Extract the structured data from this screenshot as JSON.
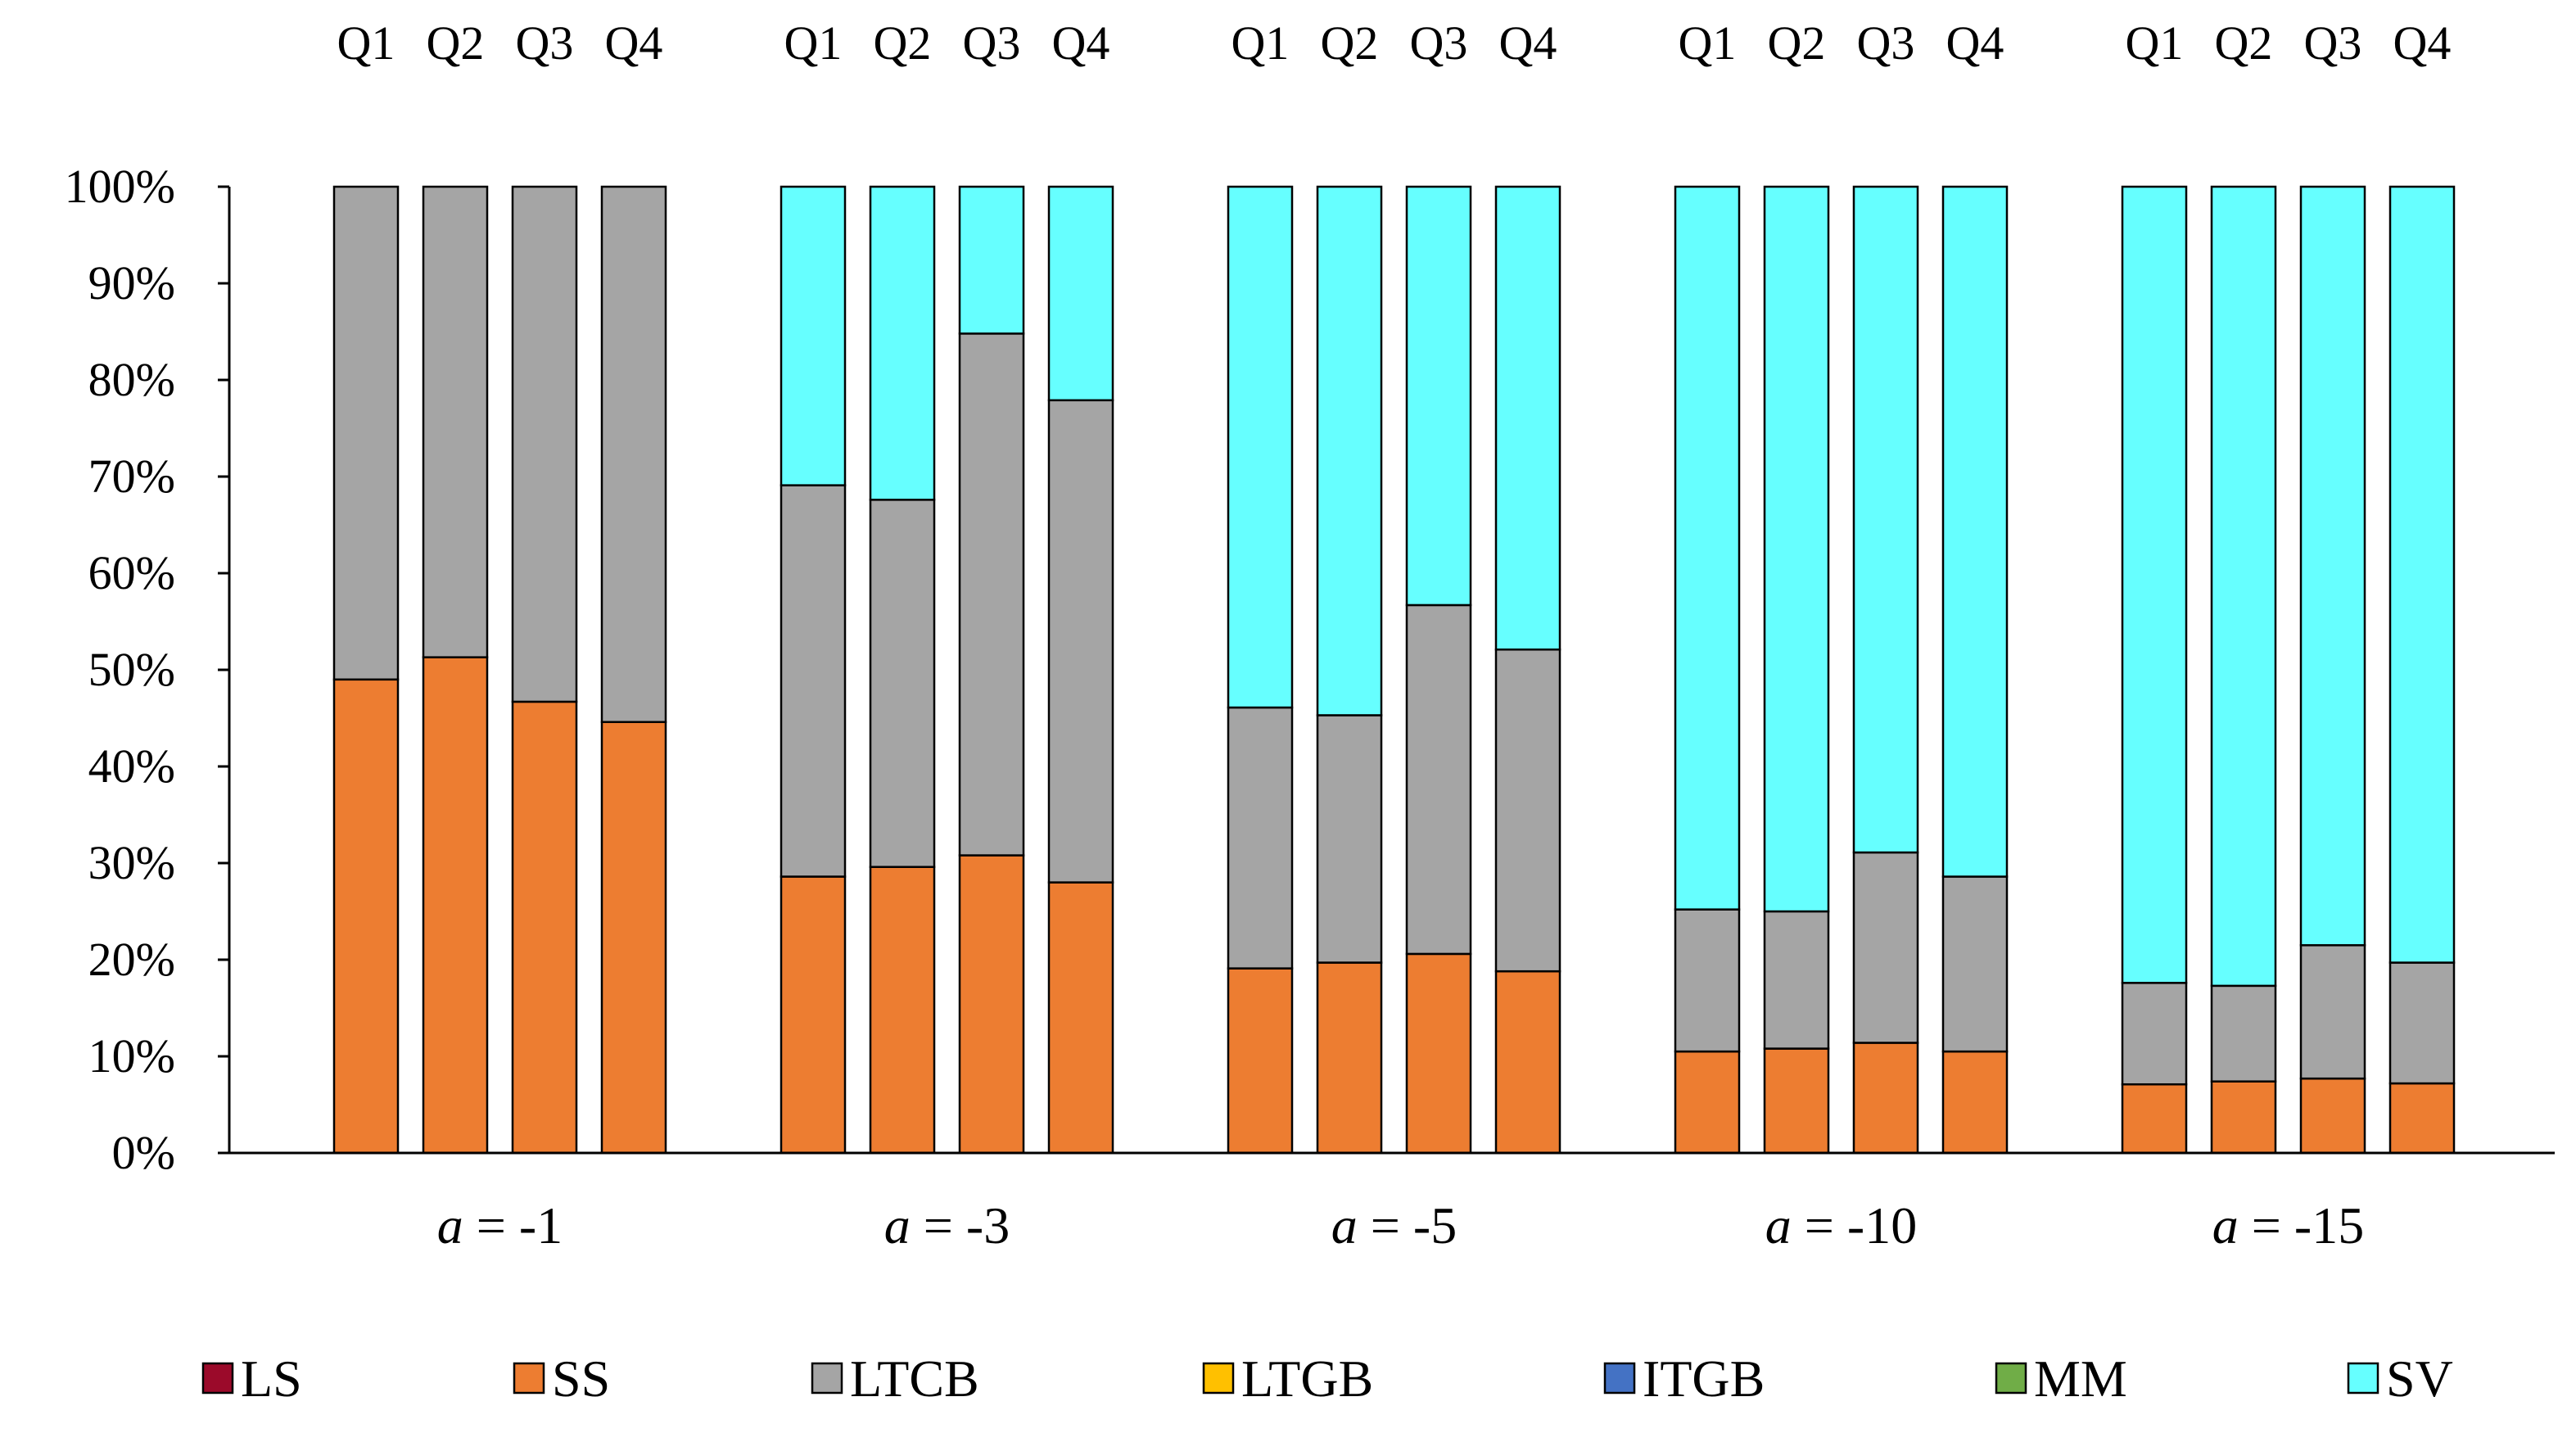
{
  "chart_data": {
    "type": "bar",
    "stacked": true,
    "percent": true,
    "title": "",
    "xlabel": "",
    "ylabel": "",
    "ylim": [
      0,
      100
    ],
    "y_ticks": [
      "0%",
      "10%",
      "20%",
      "30%",
      "40%",
      "50%",
      "60%",
      "70%",
      "80%",
      "90%",
      "100%"
    ],
    "quarters": [
      "Q1",
      "Q2",
      "Q3",
      "Q4"
    ],
    "groups": [
      {
        "prefix": "a",
        "suffix": " = -1"
      },
      {
        "prefix": "a",
        "suffix": " = -3"
      },
      {
        "prefix": "a",
        "suffix": " = -5"
      },
      {
        "prefix": "a",
        "suffix": " = -10"
      },
      {
        "prefix": "a",
        "suffix": " = -15"
      }
    ],
    "legend_position": "bottom",
    "series": [
      {
        "name": "LS",
        "color": "#9b0a2a",
        "values": [
          [
            0,
            0,
            0,
            0
          ],
          [
            0,
            0,
            0,
            0
          ],
          [
            0,
            0,
            0,
            0
          ],
          [
            0,
            0,
            0,
            0
          ],
          [
            0,
            0,
            0,
            0
          ]
        ]
      },
      {
        "name": "SS",
        "color": "#ed7d31",
        "values": [
          [
            49,
            51.3,
            46.7,
            44.6
          ],
          [
            28.6,
            29.6,
            30.8,
            28
          ],
          [
            19.1,
            19.7,
            20.6,
            18.8
          ],
          [
            10.5,
            10.8,
            11.4,
            10.5
          ],
          [
            7.1,
            7.4,
            7.7,
            7.2
          ]
        ]
      },
      {
        "name": "LTCB",
        "color": "#a5a5a5",
        "values": [
          [
            51,
            48.7,
            53.3,
            55.4
          ],
          [
            40.5,
            38,
            54,
            49.9
          ],
          [
            27,
            25.6,
            36.1,
            33.3
          ],
          [
            14.7,
            14.2,
            19.7,
            18.1
          ],
          [
            10.5,
            9.9,
            13.8,
            12.5
          ]
        ]
      },
      {
        "name": "LTGB",
        "color": "#ffc000",
        "values": [
          [
            0,
            0,
            0,
            0
          ],
          [
            0,
            0,
            0,
            0
          ],
          [
            0,
            0,
            0,
            0
          ],
          [
            0,
            0,
            0,
            0
          ],
          [
            0,
            0,
            0,
            0
          ]
        ]
      },
      {
        "name": "ITGB",
        "color": "#4472c4",
        "values": [
          [
            0,
            0,
            0,
            0
          ],
          [
            0,
            0,
            0,
            0
          ],
          [
            0,
            0,
            0,
            0
          ],
          [
            0,
            0,
            0,
            0
          ],
          [
            0,
            0,
            0,
            0
          ]
        ]
      },
      {
        "name": "MM",
        "color": "#70ad47",
        "values": [
          [
            0,
            0,
            0,
            0
          ],
          [
            0,
            0,
            0,
            0
          ],
          [
            0,
            0,
            0,
            0
          ],
          [
            0,
            0,
            0,
            0
          ],
          [
            0,
            0,
            0,
            0
          ]
        ]
      },
      {
        "name": "SV",
        "color": "#66ffff",
        "values": [
          [
            0,
            0,
            0,
            0
          ],
          [
            30.9,
            32.4,
            15.2,
            22.1
          ],
          [
            53.9,
            54.7,
            43.3,
            47.9
          ],
          [
            74.8,
            75,
            68.9,
            71.4
          ],
          [
            82.4,
            82.7,
            78.5,
            80.3
          ]
        ]
      }
    ]
  }
}
